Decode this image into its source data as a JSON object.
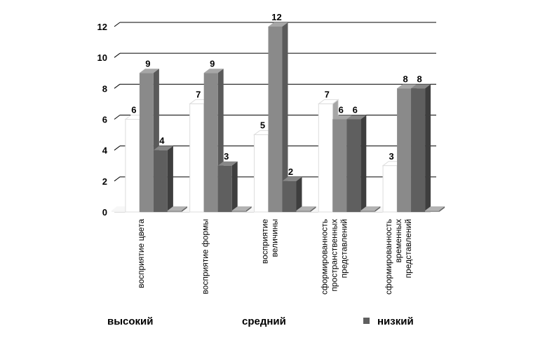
{
  "chart_data": {
    "type": "bar",
    "categories": [
      [
        "восприятие цвета"
      ],
      [
        "восприятие формы"
      ],
      [
        "восприятие",
        "величины"
      ],
      [
        "сформированность",
        "пространственных",
        "представлений"
      ],
      [
        "сформированность",
        "временных",
        "представлений"
      ]
    ],
    "series": [
      {
        "name": "высокий",
        "values": [
          0,
          0,
          0,
          0,
          0
        ],
        "color": "#f4f4f4",
        "showLabels": false
      },
      {
        "name": "средний",
        "values": [
          6,
          7,
          5,
          7,
          3
        ],
        "color": "#ffffff",
        "showLabels": true
      },
      {
        "name": "средний",
        "values": [
          9,
          9,
          12,
          6,
          8
        ],
        "color": "#8a8a8a",
        "showLabels": true
      },
      {
        "name": "низкий",
        "values": [
          4,
          3,
          2,
          6,
          8
        ],
        "color": "#5f5f5f",
        "showLabels": true
      },
      {
        "name": "",
        "values": [
          0,
          0,
          0,
          0,
          0
        ],
        "color": "#9a9a9a",
        "showLabels": false
      }
    ],
    "legend": [
      {
        "name": "высокий",
        "color": "#ffffff"
      },
      {
        "name": "средний",
        "color": "#ffffff"
      },
      {
        "name": "низкий",
        "color": "#5f5f5f"
      }
    ],
    "yticks": [
      "0",
      "2",
      "4",
      "6",
      "8",
      "10",
      "12"
    ],
    "ylim": [
      0,
      12
    ],
    "grid": true,
    "legend_position": "bottom",
    "title": "",
    "xlabel": "",
    "ylabel": ""
  }
}
